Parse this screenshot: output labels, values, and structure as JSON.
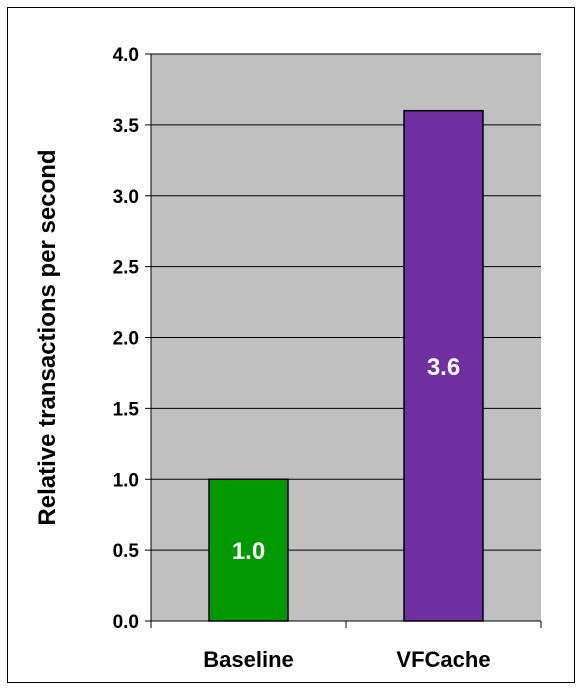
{
  "chart_data": {
    "type": "bar",
    "categories": [
      "Baseline",
      "VFCache"
    ],
    "values": [
      1.0,
      3.6
    ],
    "data_labels": [
      "1.0",
      "3.6"
    ],
    "bar_colors": [
      "#009900",
      "#7030A0"
    ],
    "title": "",
    "xlabel": "",
    "ylabel": "Relative transactions per second",
    "ylim": [
      0,
      4.0
    ],
    "y_ticks": [
      "0.0",
      "0.5",
      "1.0",
      "1.5",
      "2.0",
      "2.5",
      "3.0",
      "3.5",
      "4.0"
    ],
    "grid": true,
    "plot_background": "#C0C0C0",
    "legend": "none"
  }
}
